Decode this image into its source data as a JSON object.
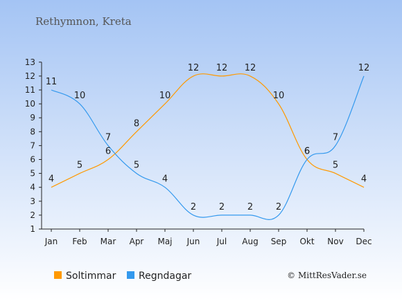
{
  "chart_data": {
    "type": "line",
    "title": "Rethymnon, Kreta",
    "xlabel": "",
    "ylabel": "",
    "categories": [
      "Jan",
      "Feb",
      "Mar",
      "Apr",
      "Maj",
      "Jun",
      "Jul",
      "Aug",
      "Sep",
      "Okt",
      "Nov",
      "Dec"
    ],
    "yticks": [
      1,
      2,
      3,
      4,
      5,
      6,
      7,
      8,
      9,
      10,
      11,
      12,
      13
    ],
    "ylim": [
      1,
      13
    ],
    "grid": false,
    "legend_position": "bottom-left",
    "series": [
      {
        "name": "Soltimmar",
        "color": "#ff9900",
        "values": [
          4,
          5,
          6,
          8,
          10,
          12,
          12,
          12,
          10,
          6,
          5,
          4
        ]
      },
      {
        "name": "Regndagar",
        "color": "#3399ee",
        "values": [
          11,
          10,
          7,
          5,
          4,
          2,
          2,
          2,
          2,
          6,
          7,
          12
        ]
      }
    ],
    "copyright": "© MittResVader.se"
  },
  "colors": {
    "bg_top": "#a4c4f4",
    "bg_bottom": "#ffffff",
    "axis": "#222222"
  }
}
